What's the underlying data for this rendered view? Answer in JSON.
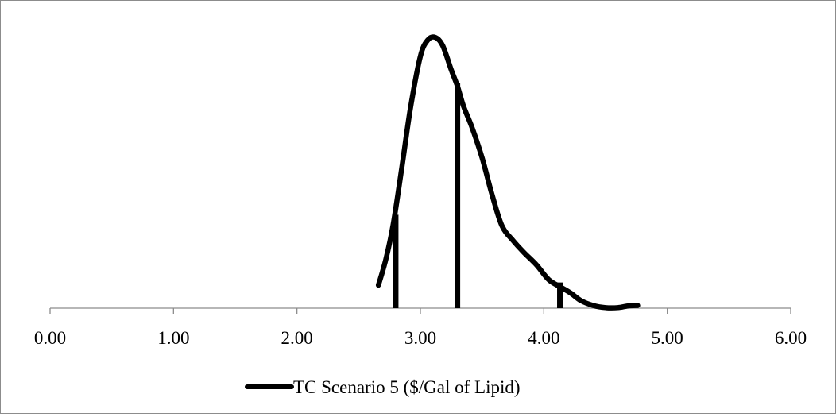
{
  "chart_data": {
    "type": "line",
    "title": "",
    "xlabel": "",
    "ylabel": "",
    "xlim": [
      0,
      6
    ],
    "ylim": [
      0,
      1
    ],
    "x_ticks": [
      "0.00",
      "1.00",
      "2.00",
      "3.00",
      "4.00",
      "5.00",
      "6.00"
    ],
    "y_axis_visible": false,
    "grid": false,
    "legend_position": "bottom",
    "series": [
      {
        "name": "TC Scenario 5 ($/Gal of Lipid)",
        "color": "#000000",
        "x": [
          2.66,
          2.72,
          2.78,
          2.85,
          2.92,
          3.0,
          3.06,
          3.12,
          3.18,
          3.25,
          3.3,
          3.35,
          3.42,
          3.5,
          3.58,
          3.66,
          3.75,
          3.84,
          3.94,
          4.04,
          4.14,
          4.22,
          4.3,
          4.4,
          4.5,
          4.6,
          4.68,
          4.76
        ],
        "values": [
          0.085,
          0.18,
          0.31,
          0.52,
          0.74,
          0.93,
          0.99,
          1.0,
          0.97,
          0.88,
          0.82,
          0.745,
          0.665,
          0.555,
          0.42,
          0.305,
          0.25,
          0.205,
          0.16,
          0.105,
          0.077,
          0.055,
          0.028,
          0.01,
          0.002,
          0.002,
          0.008,
          0.01
        ]
      }
    ],
    "markers": [
      {
        "x": 2.8,
        "y": 0.345
      },
      {
        "x": 3.3,
        "y": 0.83
      },
      {
        "x": 4.13,
        "y": 0.095
      }
    ]
  }
}
